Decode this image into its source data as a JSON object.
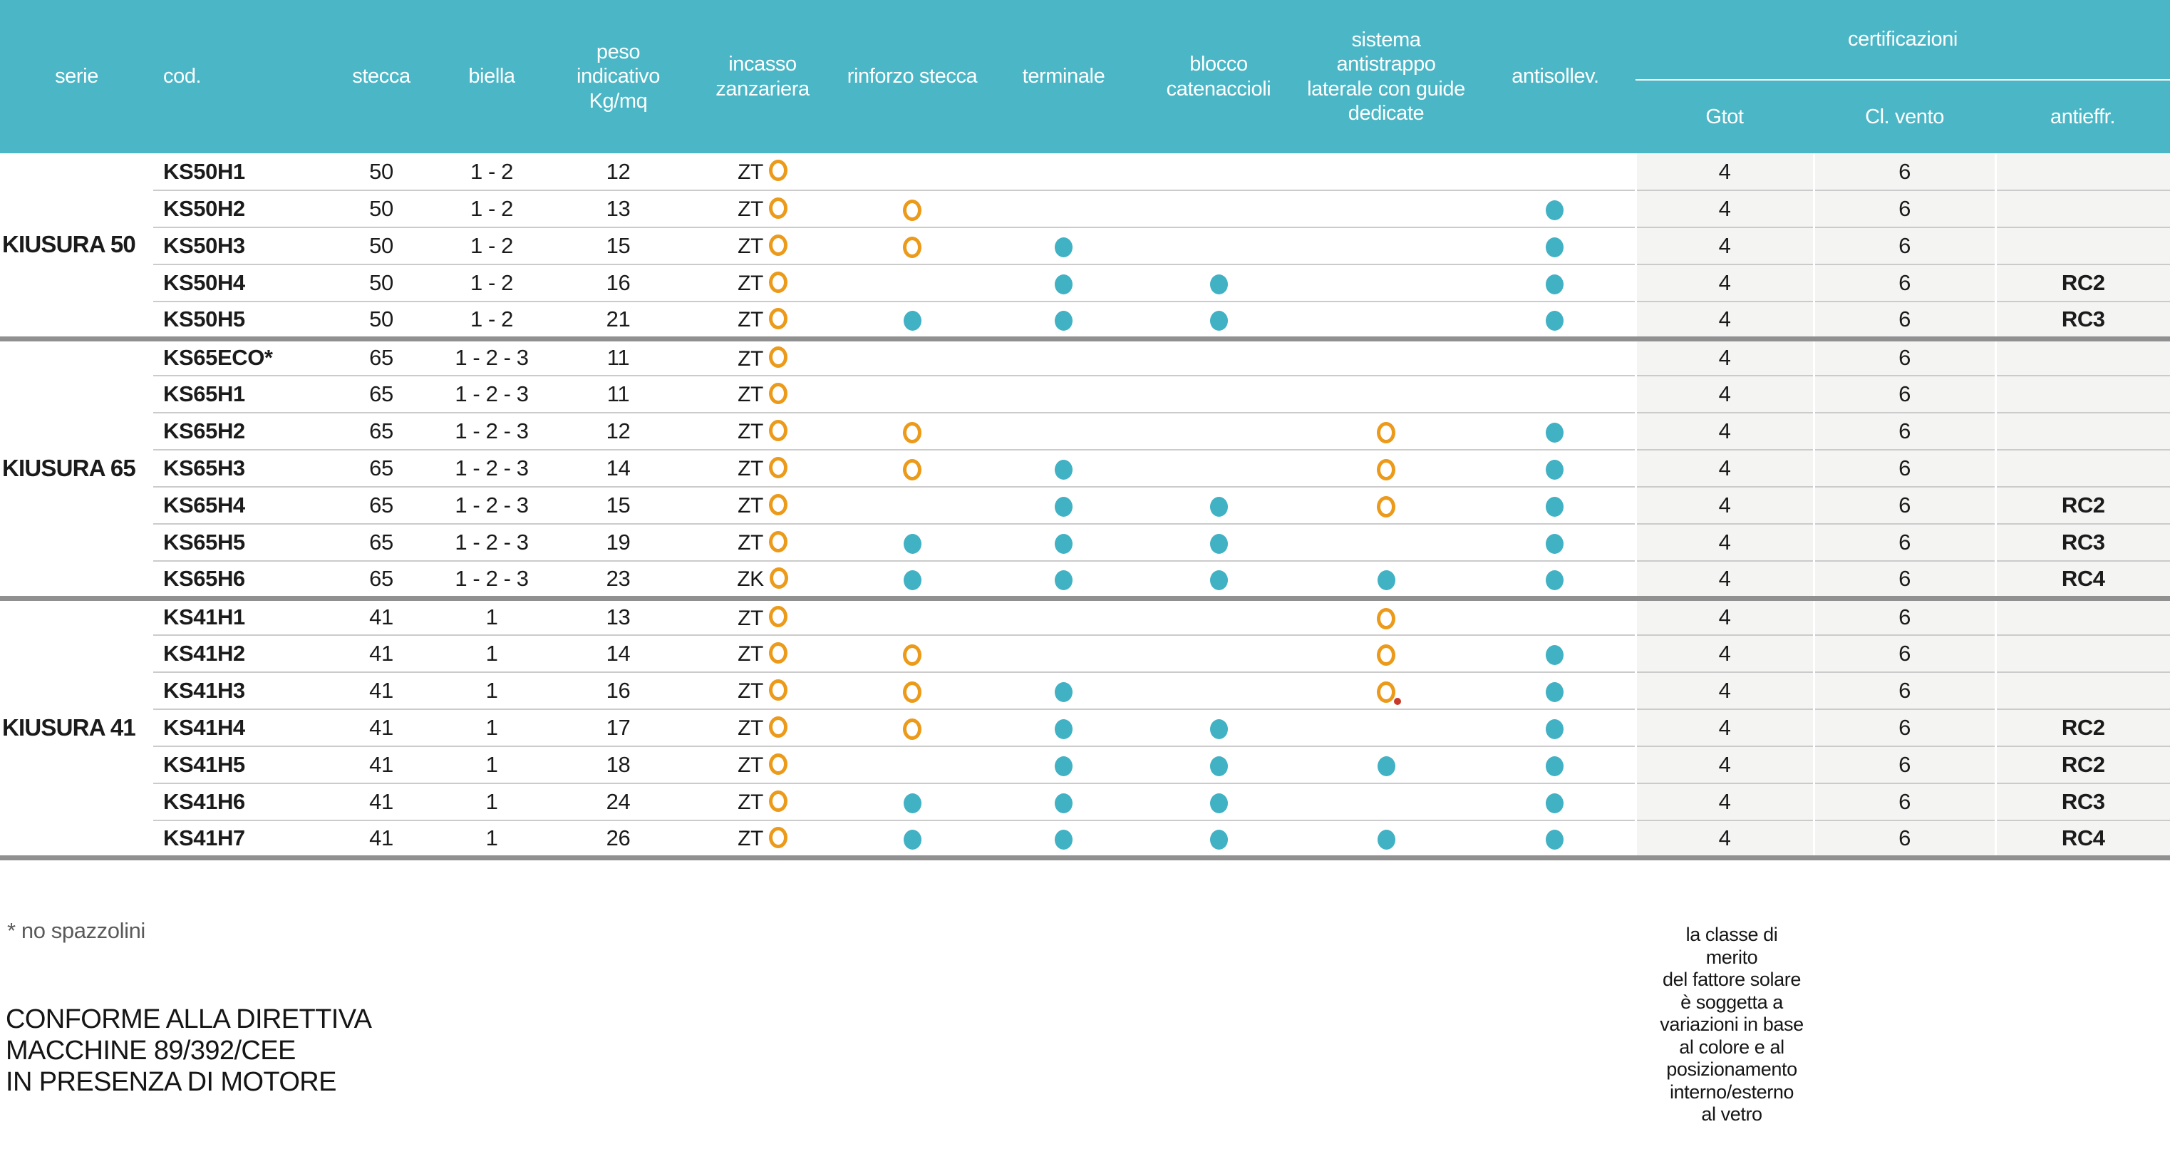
{
  "colors": {
    "header_teal": "#4AB6C6",
    "dot_teal": "#41B1C4",
    "ring_orange": "#EC9A19",
    "red_dot": "#C6392B",
    "row_line": "#CBCBCB",
    "group_bar": "#909090",
    "cert_bg": "#F4F4F3",
    "text_dark": "#1B1B1B",
    "muted_text": "#5A5A5A"
  },
  "symbols": {
    "ring_meaning": "optional-ring",
    "dot_meaning": "included-dot"
  },
  "table": {
    "columns": [
      {
        "key": "serie",
        "label": "serie"
      },
      {
        "key": "cod",
        "label": "cod."
      },
      {
        "key": "stecca",
        "label": "stecca"
      },
      {
        "key": "biella",
        "label": "biella"
      },
      {
        "key": "peso",
        "label": "peso indicativo Kg/mq"
      },
      {
        "key": "incasso",
        "label": "incasso zanzariera"
      },
      {
        "key": "rinforzo",
        "label": "rinforzo stecca"
      },
      {
        "key": "terminale",
        "label": "terminale"
      },
      {
        "key": "blocco",
        "label": "blocco catenaccioli"
      },
      {
        "key": "sistema",
        "label": "sistema antistrappo laterale con guide dedicate"
      },
      {
        "key": "antisollev",
        "label": "antisollev."
      }
    ],
    "cert_group_label": "certificazioni",
    "cert_columns": [
      "Gtot",
      "Cl. vento",
      "antieffr."
    ],
    "groups": [
      {
        "serie": "KIUSURA 50",
        "rows": [
          {
            "cod": "KS50H1",
            "stecca": "50",
            "biella": "1 - 2",
            "peso": "12",
            "incasso": {
              "text": "ZT",
              "mark": "ring"
            },
            "rinforzo": "",
            "terminale": "",
            "blocco": "",
            "sistema": "",
            "antisollev": "",
            "gtot": "4",
            "vento": "6",
            "antieffr": ""
          },
          {
            "cod": "KS50H2",
            "stecca": "50",
            "biella": "1 - 2",
            "peso": "13",
            "incasso": {
              "text": "ZT",
              "mark": "ring"
            },
            "rinforzo": "ring",
            "terminale": "",
            "blocco": "",
            "sistema": "",
            "antisollev": "dot",
            "gtot": "4",
            "vento": "6",
            "antieffr": ""
          },
          {
            "cod": "KS50H3",
            "stecca": "50",
            "biella": "1 - 2",
            "peso": "15",
            "incasso": {
              "text": "ZT",
              "mark": "ring"
            },
            "rinforzo": "ring",
            "terminale": "dot",
            "blocco": "",
            "sistema": "",
            "antisollev": "dot",
            "gtot": "4",
            "vento": "6",
            "antieffr": ""
          },
          {
            "cod": "KS50H4",
            "stecca": "50",
            "biella": "1 - 2",
            "peso": "16",
            "incasso": {
              "text": "ZT",
              "mark": "ring"
            },
            "rinforzo": "",
            "terminale": "dot",
            "blocco": "dot",
            "sistema": "",
            "antisollev": "dot",
            "gtot": "4",
            "vento": "6",
            "antieffr": "RC2"
          },
          {
            "cod": "KS50H5",
            "stecca": "50",
            "biella": "1 - 2",
            "peso": "21",
            "incasso": {
              "text": "ZT",
              "mark": "ring"
            },
            "rinforzo": "dot",
            "terminale": "dot",
            "blocco": "dot",
            "sistema": "",
            "antisollev": "dot",
            "gtot": "4",
            "vento": "6",
            "antieffr": "RC3"
          }
        ]
      },
      {
        "serie": "KIUSURA 65",
        "rows": [
          {
            "cod": "KS65ECO*",
            "stecca": "65",
            "biella": "1 - 2 - 3",
            "peso": "11",
            "incasso": {
              "text": "ZT",
              "mark": "ring"
            },
            "rinforzo": "",
            "terminale": "",
            "blocco": "",
            "sistema": "",
            "antisollev": "",
            "gtot": "4",
            "vento": "6",
            "antieffr": ""
          },
          {
            "cod": "KS65H1",
            "stecca": "65",
            "biella": "1 - 2 - 3",
            "peso": "11",
            "incasso": {
              "text": "ZT",
              "mark": "ring"
            },
            "rinforzo": "",
            "terminale": "",
            "blocco": "",
            "sistema": "",
            "antisollev": "",
            "gtot": "4",
            "vento": "6",
            "antieffr": ""
          },
          {
            "cod": "KS65H2",
            "stecca": "65",
            "biella": "1 - 2 - 3",
            "peso": "12",
            "incasso": {
              "text": "ZT",
              "mark": "ring"
            },
            "rinforzo": "ring",
            "terminale": "",
            "blocco": "",
            "sistema": "ring",
            "antisollev": "dot",
            "gtot": "4",
            "vento": "6",
            "antieffr": ""
          },
          {
            "cod": "KS65H3",
            "stecca": "65",
            "biella": "1 - 2 - 3",
            "peso": "14",
            "incasso": {
              "text": "ZT",
              "mark": "ring"
            },
            "rinforzo": "ring",
            "terminale": "dot",
            "blocco": "",
            "sistema": "ring",
            "antisollev": "dot",
            "gtot": "4",
            "vento": "6",
            "antieffr": ""
          },
          {
            "cod": "KS65H4",
            "stecca": "65",
            "biella": "1 - 2 - 3",
            "peso": "15",
            "incasso": {
              "text": "ZT",
              "mark": "ring"
            },
            "rinforzo": "",
            "terminale": "dot",
            "blocco": "dot",
            "sistema": "ring",
            "antisollev": "dot",
            "gtot": "4",
            "vento": "6",
            "antieffr": "RC2"
          },
          {
            "cod": "KS65H5",
            "stecca": "65",
            "biella": "1 - 2 - 3",
            "peso": "19",
            "incasso": {
              "text": "ZT",
              "mark": "ring"
            },
            "rinforzo": "dot",
            "terminale": "dot",
            "blocco": "dot",
            "sistema": "",
            "antisollev": "dot",
            "gtot": "4",
            "vento": "6",
            "antieffr": "RC3"
          },
          {
            "cod": "KS65H6",
            "stecca": "65",
            "biella": "1 - 2 - 3",
            "peso": "23",
            "incasso": {
              "text": "ZK",
              "mark": "ring"
            },
            "rinforzo": "dot",
            "terminale": "dot",
            "blocco": "dot",
            "sistema": "dot",
            "antisollev": "dot",
            "gtot": "4",
            "vento": "6",
            "antieffr": "RC4"
          }
        ]
      },
      {
        "serie": "KIUSURA 41",
        "rows": [
          {
            "cod": "KS41H1",
            "stecca": "41",
            "biella": "1",
            "peso": "13",
            "incasso": {
              "text": "ZT",
              "mark": "ring"
            },
            "rinforzo": "",
            "terminale": "",
            "blocco": "",
            "sistema": "ring",
            "antisollev": "",
            "gtot": "4",
            "vento": "6",
            "antieffr": ""
          },
          {
            "cod": "KS41H2",
            "stecca": "41",
            "biella": "1",
            "peso": "14",
            "incasso": {
              "text": "ZT",
              "mark": "ring"
            },
            "rinforzo": "ring",
            "terminale": "",
            "blocco": "",
            "sistema": "ring",
            "antisollev": "dot",
            "gtot": "4",
            "vento": "6",
            "antieffr": ""
          },
          {
            "cod": "KS41H3",
            "stecca": "41",
            "biella": "1",
            "peso": "16",
            "incasso": {
              "text": "ZT",
              "mark": "ring"
            },
            "rinforzo": "ring",
            "terminale": "dot",
            "blocco": "",
            "sistema": "ring_reddot",
            "antisollev": "dot",
            "gtot": "4",
            "vento": "6",
            "antieffr": ""
          },
          {
            "cod": "KS41H4",
            "stecca": "41",
            "biella": "1",
            "peso": "17",
            "incasso": {
              "text": "ZT",
              "mark": "ring"
            },
            "rinforzo": "ring",
            "terminale": "dot",
            "blocco": "dot",
            "sistema": "",
            "antisollev": "dot",
            "gtot": "4",
            "vento": "6",
            "antieffr": "RC2"
          },
          {
            "cod": "KS41H5",
            "stecca": "41",
            "biella": "1",
            "peso": "18",
            "incasso": {
              "text": "ZT",
              "mark": "ring"
            },
            "rinforzo": "",
            "terminale": "dot",
            "blocco": "dot",
            "sistema": "dot",
            "antisollev": "dot",
            "gtot": "4",
            "vento": "6",
            "antieffr": "RC2"
          },
          {
            "cod": "KS41H6",
            "stecca": "41",
            "biella": "1",
            "peso": "24",
            "incasso": {
              "text": "ZT",
              "mark": "ring"
            },
            "rinforzo": "dot",
            "terminale": "dot",
            "blocco": "dot",
            "sistema": "",
            "antisollev": "dot",
            "gtot": "4",
            "vento": "6",
            "antieffr": "RC3"
          },
          {
            "cod": "KS41H7",
            "stecca": "41",
            "biella": "1",
            "peso": "26",
            "incasso": {
              "text": "ZT",
              "mark": "ring"
            },
            "rinforzo": "dot",
            "terminale": "dot",
            "blocco": "dot",
            "sistema": "dot",
            "antisollev": "dot",
            "gtot": "4",
            "vento": "6",
            "antieffr": "RC4"
          }
        ]
      }
    ]
  },
  "footnotes": {
    "asterisk": "* no spazzolini",
    "directive": "CONFORME ALLA DIRETTIVA\nMACCHINE 89/392/CEE\nIN PRESENZA DI MOTORE",
    "cert_note": "la classe di\nmerito\ndel fattore solare\nè soggetta a\nvariazioni in base\nal colore e al\nposizionamento\ninterno/esterno\nal vetro"
  }
}
